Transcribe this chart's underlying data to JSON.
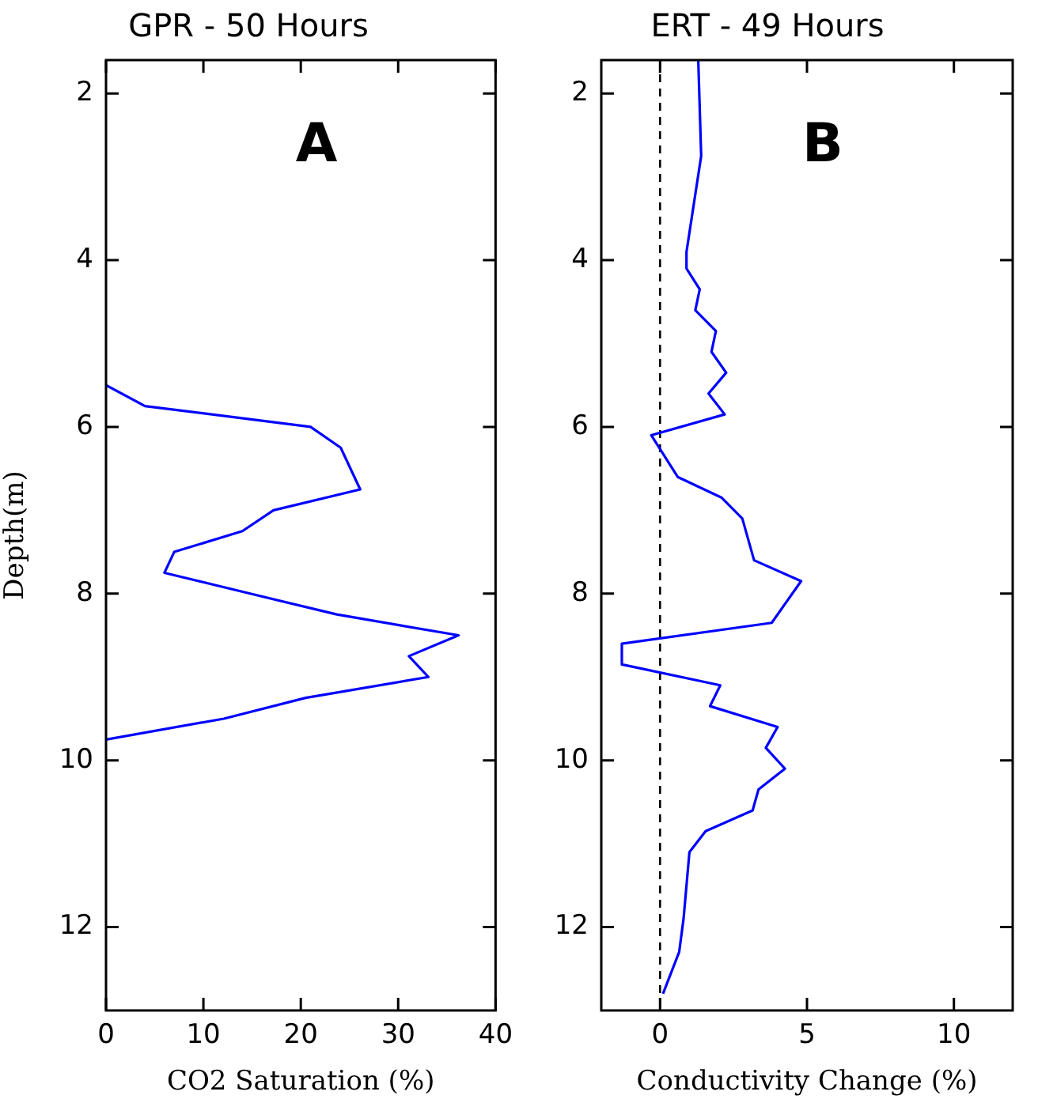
{
  "chart_data": [
    {
      "type": "line",
      "title": "GPR - 50 Hours",
      "xlabel": "CO2 Saturation (%)",
      "ylabel": "Depth(m)",
      "annotations": [
        "A"
      ],
      "series": [
        {
          "color": "#0000ff",
          "x": [
            0,
            4.0,
            21.0,
            24.1,
            26.1,
            17.2,
            14.0,
            7.0,
            6.0,
            14.8,
            23.7,
            36.2,
            31.1,
            33.1,
            20.5,
            12.1,
            0
          ],
          "values": [
            5.5,
            5.75,
            6.0,
            6.25,
            6.75,
            7.0,
            7.25,
            7.5,
            7.75,
            8.0,
            8.25,
            8.5,
            8.75,
            9.0,
            9.25,
            9.5,
            9.75
          ]
        }
      ],
      "xlim": [
        0,
        40
      ],
      "xticks": [
        0,
        10,
        20,
        30,
        40
      ],
      "ylim": [
        13,
        1.6
      ],
      "yticks": [
        2,
        4,
        6,
        8,
        10,
        12
      ],
      "grid": false,
      "legend": false,
      "marker": "none",
      "line_style": "solid"
    },
    {
      "type": "line",
      "title": "ERT - 49 Hours",
      "xlabel": "Conductivity Change (%)",
      "annotations": [
        "B"
      ],
      "series": [
        {
          "color": "#0000ff",
          "x": [
            1.3,
            1.4,
            0.9,
            0.9,
            1.35,
            1.2,
            1.9,
            1.75,
            2.25,
            1.65,
            2.2,
            -0.3,
            0.6,
            2.1,
            2.8,
            3.2,
            4.8,
            3.8,
            -1.3,
            -1.3,
            2.05,
            1.7,
            4.0,
            3.6,
            4.25,
            3.35,
            3.15,
            1.55,
            1.0,
            0.8,
            0.65,
            0.1
          ],
          "values": [
            1.6,
            2.75,
            3.9,
            4.1,
            4.35,
            4.6,
            4.85,
            5.1,
            5.35,
            5.6,
            5.85,
            6.1,
            6.6,
            6.85,
            7.1,
            7.6,
            7.85,
            8.35,
            8.6,
            8.85,
            9.1,
            9.35,
            9.6,
            9.85,
            10.1,
            10.35,
            10.6,
            10.85,
            11.1,
            11.9,
            12.3,
            12.8
          ]
        }
      ],
      "ref_lines": [
        {
          "axis": "x",
          "value": 0,
          "color": "#000000",
          "line_style": "dashed"
        }
      ],
      "xlim": [
        -2,
        12
      ],
      "xticks": [
        0,
        5,
        10
      ],
      "ylim": [
        13,
        1.6
      ],
      "yticks": [
        2,
        4,
        6,
        8,
        10,
        12
      ],
      "grid": false,
      "legend": false,
      "marker": "none",
      "line_style": "solid"
    }
  ]
}
